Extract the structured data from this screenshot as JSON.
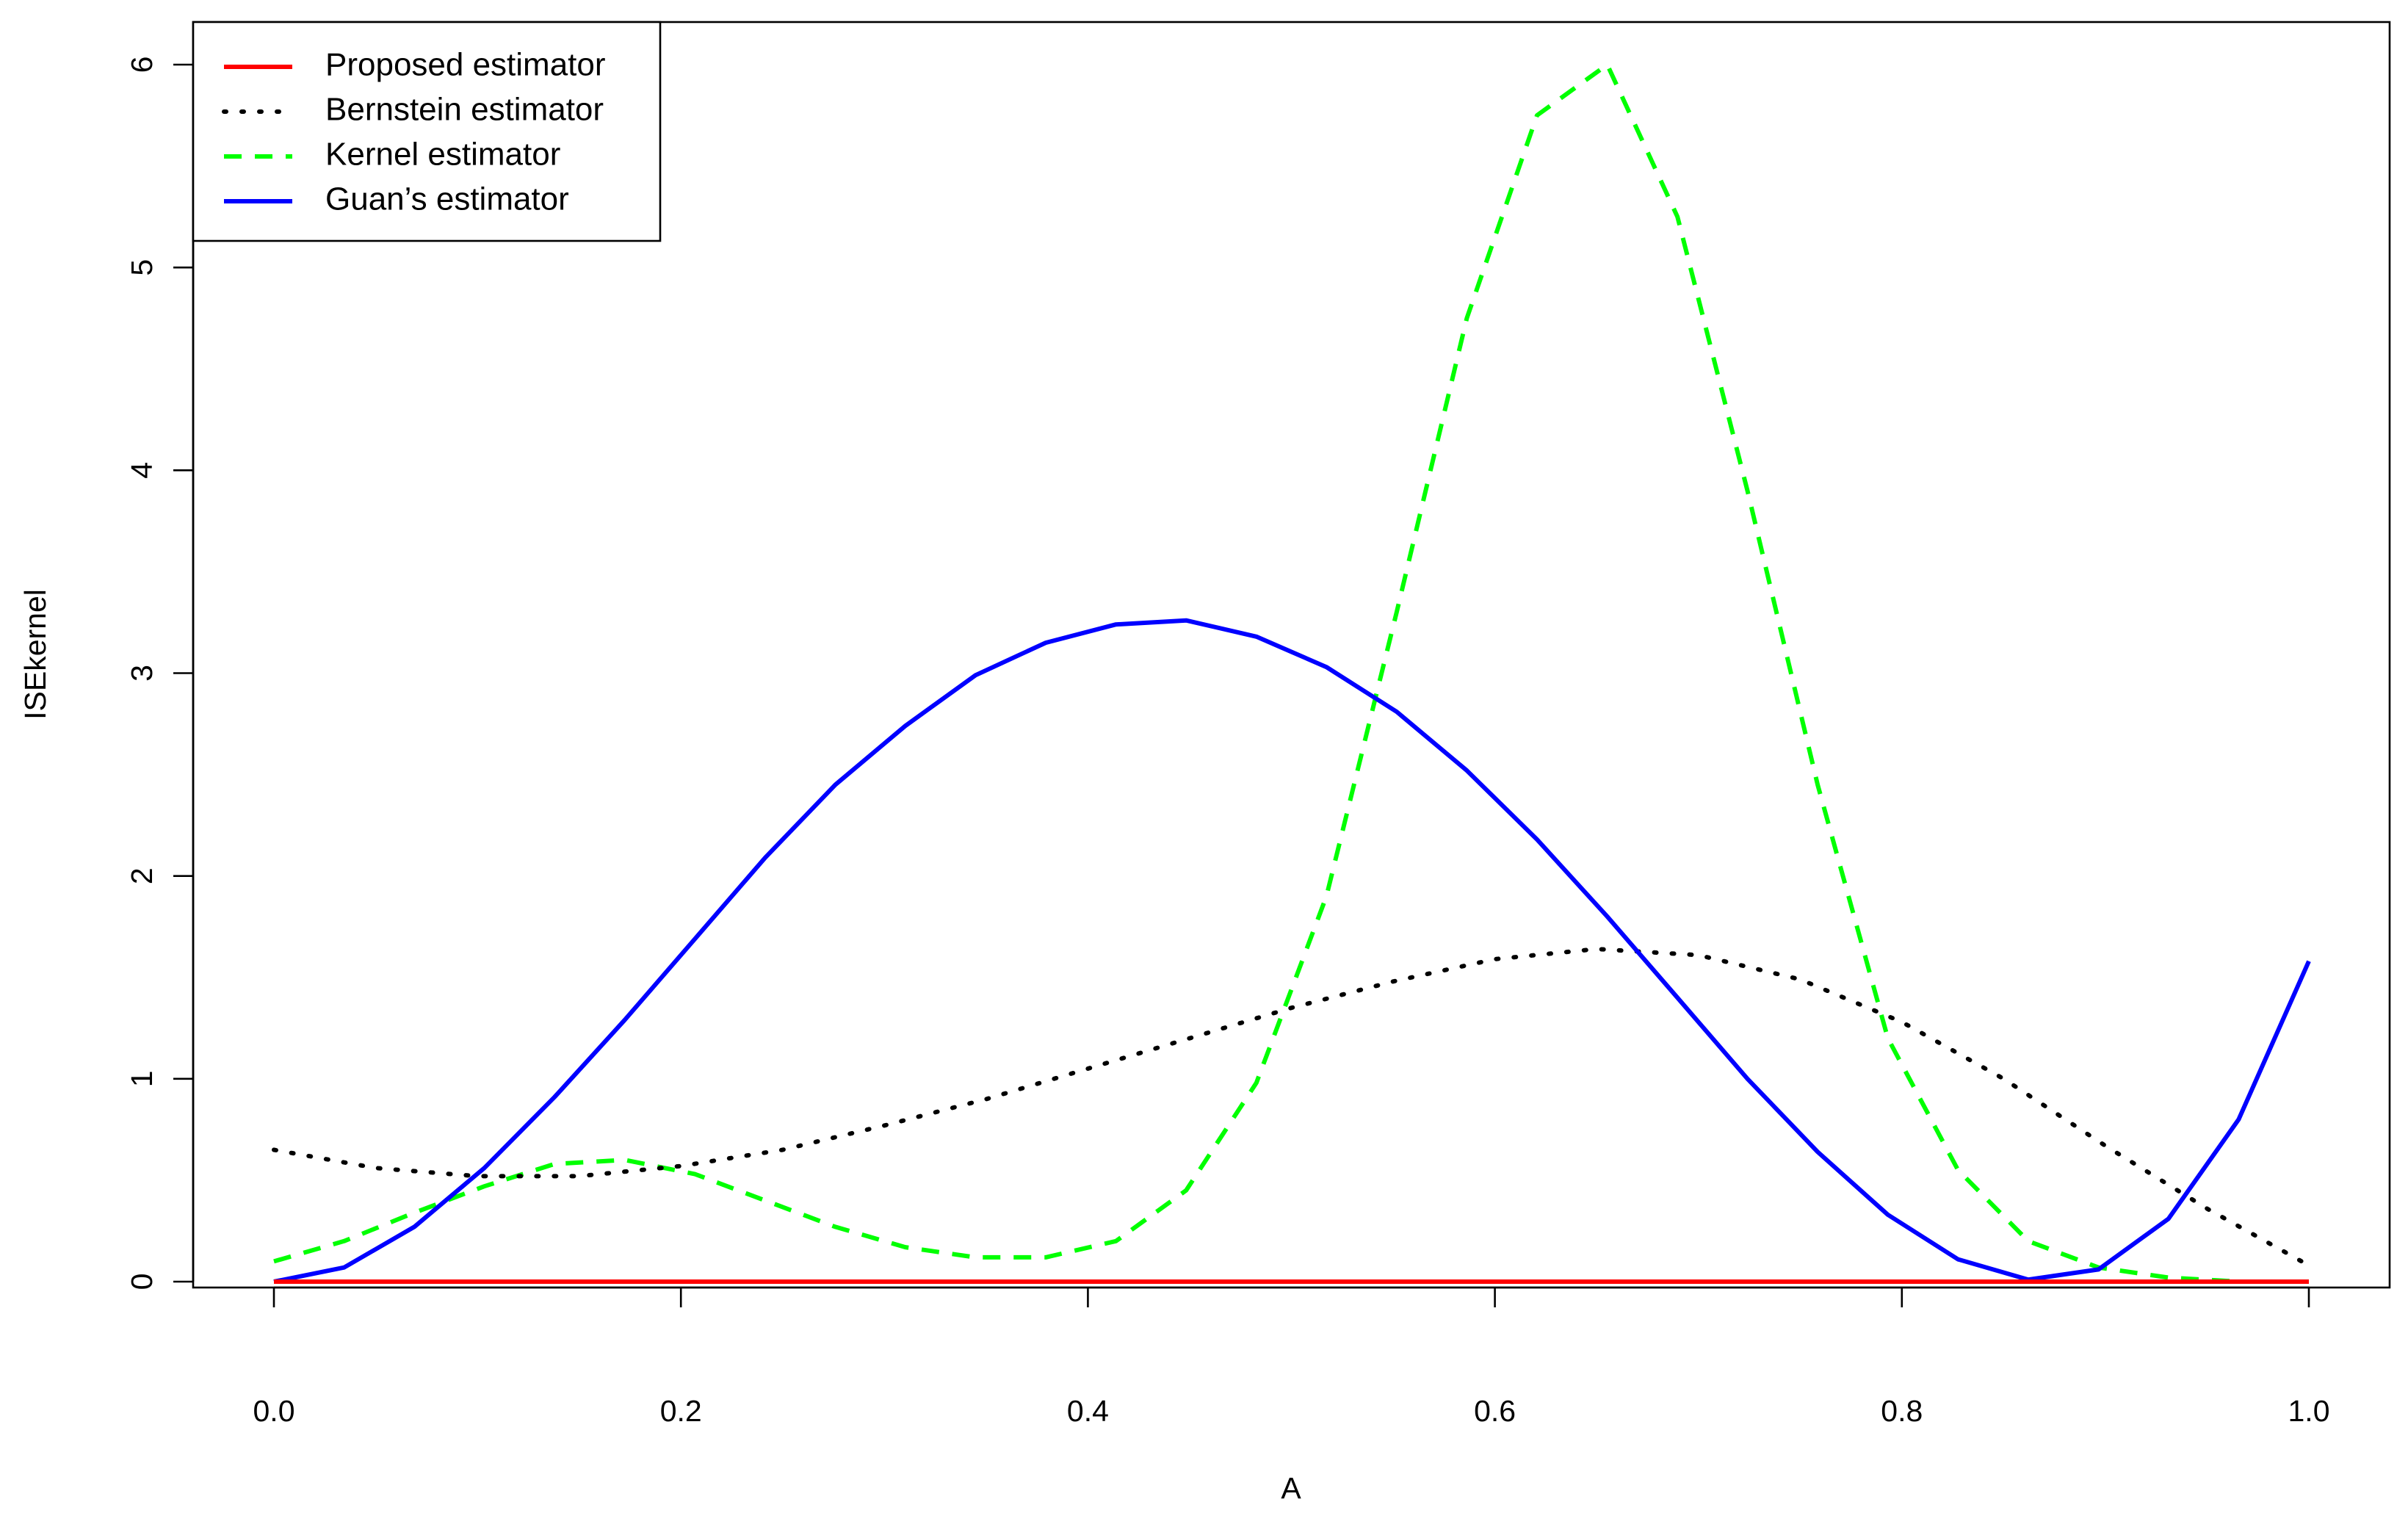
{
  "chart_data": {
    "type": "line",
    "title": "",
    "xlabel": "A",
    "ylabel": "ISEkernel",
    "xlim": [
      0,
      1
    ],
    "ylim": [
      0,
      6
    ],
    "x_ticks": [
      "0.0",
      "0.2",
      "0.4",
      "0.6",
      "0.8",
      "1.0"
    ],
    "y_ticks": [
      "0",
      "1",
      "2",
      "3",
      "4",
      "5",
      "6"
    ],
    "x_tick_values": [
      0,
      0.2,
      0.4,
      0.6,
      0.8,
      1.0
    ],
    "y_tick_values": [
      0,
      1,
      2,
      3,
      4,
      5,
      6
    ],
    "grid": false,
    "legend_position": "top-left",
    "series": [
      {
        "name": "Proposed estimator",
        "color": "#ff0000",
        "dash": "solid",
        "x": [
          0,
          1
        ],
        "y": [
          0,
          0
        ]
      },
      {
        "name": "Bernstein estimator",
        "color": "#000000",
        "dash": "dotted",
        "x": [
          0,
          0.05,
          0.1,
          0.15,
          0.2,
          0.25,
          0.3,
          0.35,
          0.4,
          0.45,
          0.5,
          0.55,
          0.6,
          0.65,
          0.7,
          0.75,
          0.8,
          0.85,
          0.9,
          0.95,
          1.0
        ],
        "y": [
          0.65,
          0.56,
          0.52,
          0.52,
          0.57,
          0.65,
          0.77,
          0.9,
          1.05,
          1.2,
          1.35,
          1.48,
          1.59,
          1.64,
          1.61,
          1.49,
          1.28,
          1.0,
          0.67,
          0.36,
          0.08
        ]
      },
      {
        "name": "Kernel estimator",
        "color": "#00ff00",
        "dash": "dashed",
        "x": [
          0,
          0.0345,
          0.069,
          0.1034,
          0.1379,
          0.1724,
          0.2069,
          0.2414,
          0.2759,
          0.3103,
          0.3448,
          0.3793,
          0.4138,
          0.4483,
          0.4828,
          0.5172,
          0.5517,
          0.5862,
          0.6207,
          0.6552,
          0.6897,
          0.7241,
          0.7586,
          0.7931,
          0.8276,
          0.8621,
          0.8966,
          0.931,
          0.9655,
          1.0
        ],
        "y": [
          0.1,
          0.2,
          0.34,
          0.47,
          0.58,
          0.6,
          0.53,
          0.4,
          0.27,
          0.17,
          0.12,
          0.12,
          0.2,
          0.45,
          0.98,
          1.9,
          3.3,
          4.75,
          5.75,
          6.0,
          5.25,
          3.9,
          2.45,
          1.2,
          0.55,
          0.2,
          0.07,
          0.02,
          0.0,
          0.0
        ]
      },
      {
        "name": "Guan’s estimator",
        "color": "#0000ff",
        "dash": "solid",
        "x": [
          0,
          0.0345,
          0.069,
          0.1034,
          0.1379,
          0.1724,
          0.2069,
          0.2414,
          0.2759,
          0.3103,
          0.3448,
          0.3793,
          0.4138,
          0.4483,
          0.4828,
          0.5172,
          0.5517,
          0.5862,
          0.6207,
          0.6552,
          0.6897,
          0.7241,
          0.7586,
          0.7931,
          0.8276,
          0.8621,
          0.8966,
          0.931,
          0.9655,
          1.0
        ],
        "y": [
          0.0,
          0.07,
          0.27,
          0.56,
          0.91,
          1.29,
          1.69,
          2.09,
          2.45,
          2.74,
          2.99,
          3.15,
          3.24,
          3.26,
          3.18,
          3.03,
          2.81,
          2.52,
          2.18,
          1.8,
          1.4,
          1.0,
          0.64,
          0.33,
          0.11,
          0.01,
          0.06,
          0.31,
          0.8,
          1.58
        ]
      }
    ]
  }
}
